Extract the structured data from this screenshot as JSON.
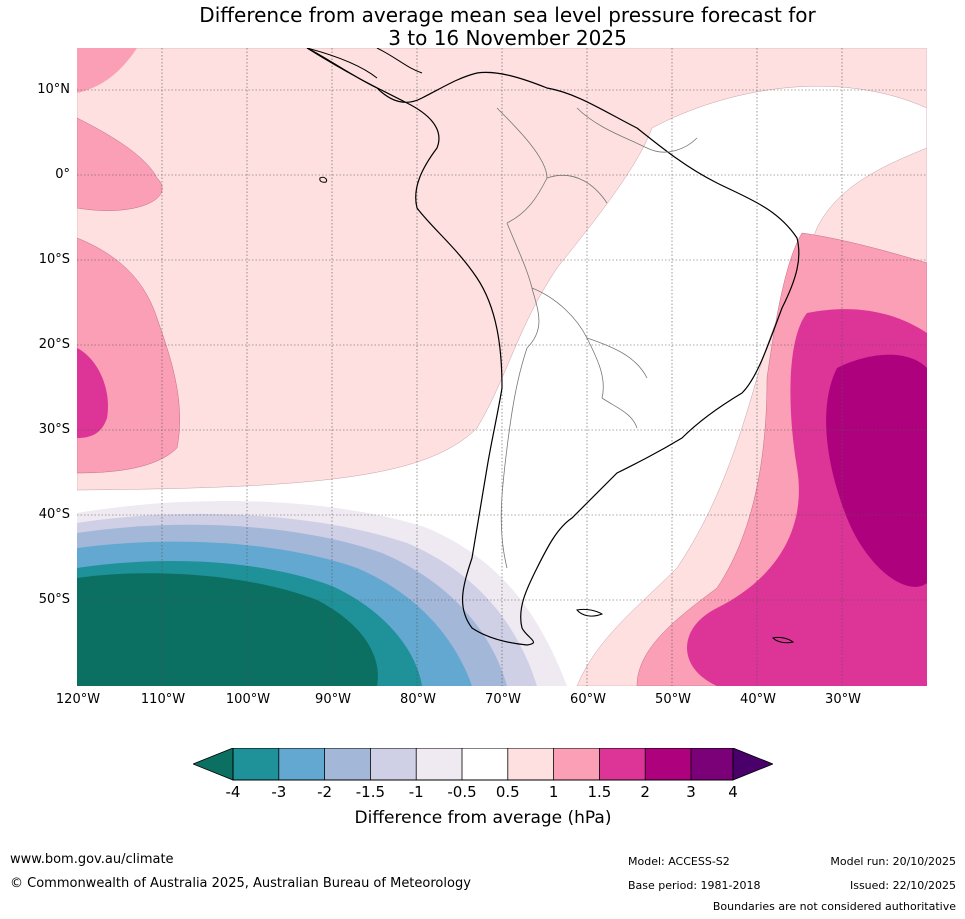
{
  "title": {
    "line1": "Difference from average mean sea level pressure forecast for",
    "line2": "3 to 16 November 2025"
  },
  "map": {
    "region": "South America",
    "lat_labels": [
      "10°N",
      "0°",
      "10°S",
      "20°S",
      "30°S",
      "40°S",
      "50°S"
    ],
    "lon_labels": [
      "120°W",
      "110°W",
      "100°W",
      "90°W",
      "80°W",
      "70°W",
      "60°W",
      "50°W",
      "40°W",
      "30°W"
    ]
  },
  "colorbar": {
    "label": "Difference from average (hPa)",
    "ticks": [
      "-4",
      "-3",
      "-2",
      "-1.5",
      "-1",
      "-0.5",
      "0.5",
      "1",
      "1.5",
      "2",
      "3",
      "4"
    ],
    "colors": [
      "#0b6f62",
      "#1e9199",
      "#63a8d0",
      "#a3b7d9",
      "#cfcfe5",
      "#efe9f1",
      "#ffffff",
      "#fde0df",
      "#fa9fb5",
      "#dd3497",
      "#ae017e",
      "#7a0177",
      "#49006a"
    ]
  },
  "footer": {
    "website": "www.bom.gov.au/climate",
    "copyright": "© Commonwealth of Australia 2025, Australian Bureau of Meteorology",
    "model": "Model: ACCESS-S2",
    "base_period": "Base period: 1981-2018",
    "model_run": "Model run: 20/10/2025",
    "issued": "Issued: 22/10/2025",
    "disclaimer": "Boundaries are not considered authoritative"
  }
}
